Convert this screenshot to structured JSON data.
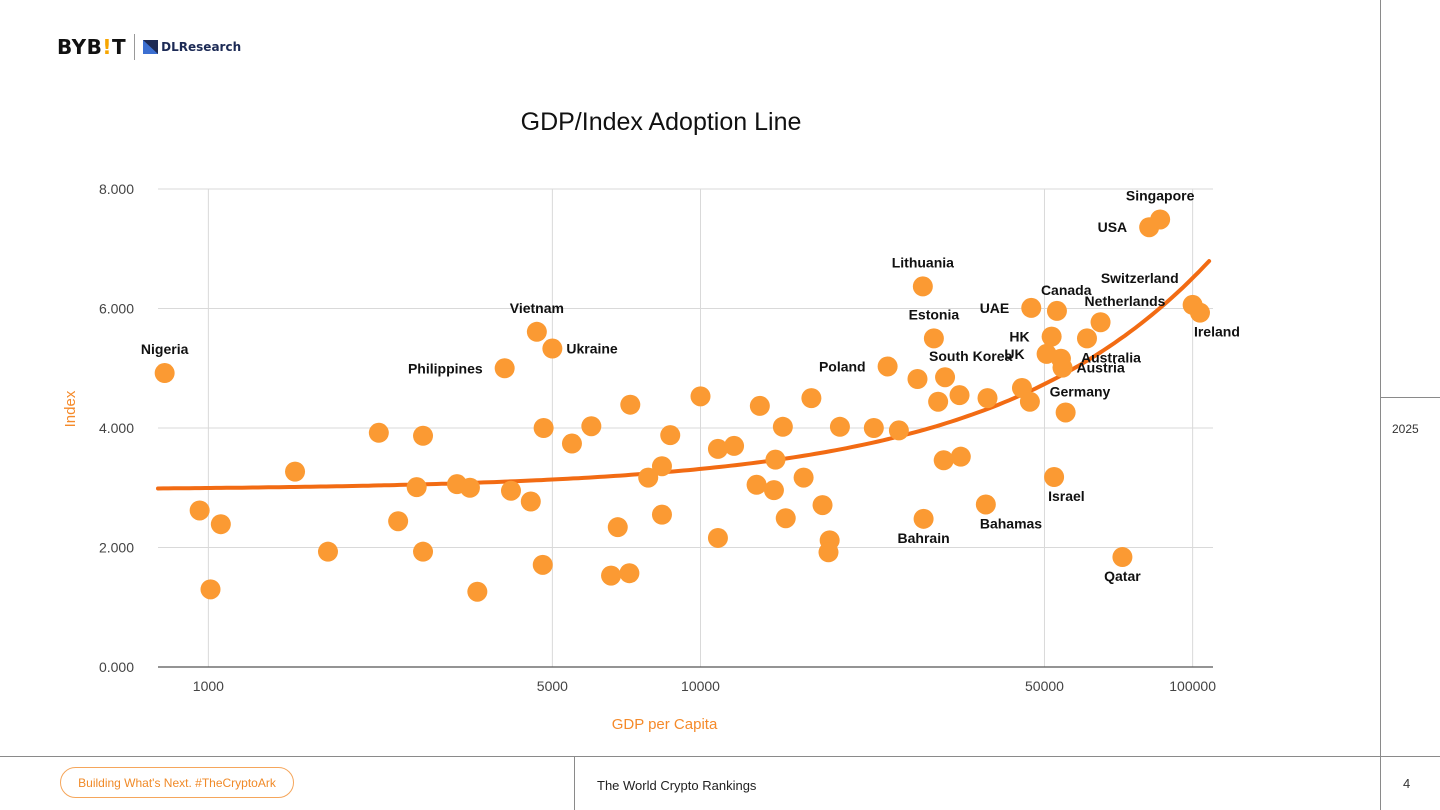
{
  "brand": {
    "logo_prefix": "BYB",
    "logo_accent": "!",
    "logo_suffix": "T",
    "partner": "DLResearch"
  },
  "year": "2025",
  "page_number": "4",
  "footer": {
    "tagline": "Building What's Next. #TheCryptoArk",
    "report_title": "The World Crypto Rankings"
  },
  "colors": {
    "point": "#fb9a33",
    "trend": "#f26b13",
    "grid": "#d9d9d9",
    "axis": "#555555"
  },
  "chart_data": {
    "type": "scatter",
    "title": "GDP/Index Adoption Line",
    "xlabel": "GDP per Capita",
    "ylabel": "Index",
    "x_scale": "log",
    "xlim": [
      790,
      110000
    ],
    "ylim": [
      0,
      8
    ],
    "grid": true,
    "x_ticks": [
      {
        "value": 1000,
        "label": "1000"
      },
      {
        "value": 5000,
        "label": "5000"
      },
      {
        "value": 10000,
        "label": "10000"
      },
      {
        "value": 50000,
        "label": "50000"
      },
      {
        "value": 100000,
        "label": "100000"
      }
    ],
    "y_ticks": [
      {
        "value": 0,
        "label": "0.000"
      },
      {
        "value": 2,
        "label": "2.000"
      },
      {
        "value": 4,
        "label": "4.000"
      },
      {
        "value": 6,
        "label": "6.000"
      },
      {
        "value": 8,
        "label": "8.000"
      }
    ],
    "trend_line": {
      "type": "linear-in-gdp",
      "intercept": 2.96,
      "slope_per_100k": 3.55
    },
    "points": [
      {
        "x": 815,
        "y": 4.92,
        "label": "Nigeria",
        "label_pos": "above"
      },
      {
        "x": 960,
        "y": 2.62
      },
      {
        "x": 1010,
        "y": 1.3
      },
      {
        "x": 1060,
        "y": 2.39
      },
      {
        "x": 1500,
        "y": 3.27
      },
      {
        "x": 1750,
        "y": 1.93
      },
      {
        "x": 2220,
        "y": 3.92
      },
      {
        "x": 2430,
        "y": 2.44
      },
      {
        "x": 2650,
        "y": 3.01
      },
      {
        "x": 2730,
        "y": 3.87
      },
      {
        "x": 2730,
        "y": 1.93
      },
      {
        "x": 3200,
        "y": 3.06
      },
      {
        "x": 3400,
        "y": 3.0
      },
      {
        "x": 3520,
        "y": 1.26
      },
      {
        "x": 4000,
        "y": 5.0,
        "label": "Philippines",
        "label_pos": "left"
      },
      {
        "x": 4120,
        "y": 2.95
      },
      {
        "x": 4520,
        "y": 2.77
      },
      {
        "x": 4650,
        "y": 5.61,
        "label": "Vietnam",
        "label_pos": "above"
      },
      {
        "x": 4800,
        "y": 4.0
      },
      {
        "x": 4780,
        "y": 1.71
      },
      {
        "x": 5000,
        "y": 5.33,
        "label": "Ukraine",
        "label_pos": "right"
      },
      {
        "x": 5480,
        "y": 3.74
      },
      {
        "x": 6000,
        "y": 4.03
      },
      {
        "x": 6580,
        "y": 1.53
      },
      {
        "x": 6790,
        "y": 2.34
      },
      {
        "x": 7170,
        "y": 1.57
      },
      {
        "x": 7200,
        "y": 4.39
      },
      {
        "x": 7830,
        "y": 3.17
      },
      {
        "x": 8350,
        "y": 3.36
      },
      {
        "x": 8350,
        "y": 2.55
      },
      {
        "x": 8680,
        "y": 3.88
      },
      {
        "x": 10000,
        "y": 4.53
      },
      {
        "x": 10850,
        "y": 3.65
      },
      {
        "x": 10850,
        "y": 2.16
      },
      {
        "x": 11700,
        "y": 3.7
      },
      {
        "x": 13000,
        "y": 3.05
      },
      {
        "x": 13200,
        "y": 4.37
      },
      {
        "x": 14100,
        "y": 2.96
      },
      {
        "x": 14200,
        "y": 3.47
      },
      {
        "x": 14700,
        "y": 4.02
      },
      {
        "x": 14900,
        "y": 2.49
      },
      {
        "x": 16200,
        "y": 3.17
      },
      {
        "x": 16800,
        "y": 4.5
      },
      {
        "x": 17700,
        "y": 2.71
      },
      {
        "x": 18300,
        "y": 2.12
      },
      {
        "x": 18200,
        "y": 1.92
      },
      {
        "x": 19200,
        "y": 4.02
      },
      {
        "x": 22500,
        "y": 4.0
      },
      {
        "x": 24000,
        "y": 5.03,
        "label": "Poland",
        "label_pos": "left"
      },
      {
        "x": 25300,
        "y": 3.96
      },
      {
        "x": 27600,
        "y": 4.82
      },
      {
        "x": 28400,
        "y": 2.48,
        "label": "Bahrain",
        "label_pos": "below"
      },
      {
        "x": 28300,
        "y": 6.37,
        "label": "Lithuania",
        "label_pos": "above"
      },
      {
        "x": 29800,
        "y": 5.5,
        "label": "Estonia",
        "label_pos": "above"
      },
      {
        "x": 30400,
        "y": 4.44
      },
      {
        "x": 31200,
        "y": 3.46
      },
      {
        "x": 31400,
        "y": 4.85,
        "label": "South Korea",
        "label_pos": "above-right"
      },
      {
        "x": 33600,
        "y": 4.55
      },
      {
        "x": 33800,
        "y": 3.52
      },
      {
        "x": 38000,
        "y": 2.72,
        "label": "Bahamas",
        "label_pos": "below-right"
      },
      {
        "x": 38300,
        "y": 4.5
      },
      {
        "x": 45000,
        "y": 4.67
      },
      {
        "x": 46700,
        "y": 4.44
      },
      {
        "x": 47000,
        "y": 6.01,
        "label": "UAE",
        "label_pos": "left"
      },
      {
        "x": 50500,
        "y": 5.24,
        "label": "UK",
        "label_pos": "left"
      },
      {
        "x": 51700,
        "y": 5.53,
        "label": "HK",
        "label_pos": "left"
      },
      {
        "x": 52300,
        "y": 3.18,
        "label": "Israel",
        "label_pos": "below-right"
      },
      {
        "x": 53000,
        "y": 5.96,
        "label": "Canada",
        "label_pos": "above-right"
      },
      {
        "x": 54000,
        "y": 5.16
      },
      {
        "x": 54400,
        "y": 5.01,
        "label": "Austria",
        "label_pos": "right"
      },
      {
        "x": 55200,
        "y": 4.26,
        "label": "Germany",
        "label_pos": "above-right"
      },
      {
        "x": 61000,
        "y": 5.5,
        "label": "Australia",
        "label_pos": "below-right"
      },
      {
        "x": 65000,
        "y": 5.77,
        "label": "Netherlands",
        "label_pos": "above-right"
      },
      {
        "x": 72000,
        "y": 1.84,
        "label": "Qatar",
        "label_pos": "below"
      },
      {
        "x": 81600,
        "y": 7.36,
        "label": "USA",
        "label_pos": "left"
      },
      {
        "x": 85900,
        "y": 7.49,
        "label": "Singapore",
        "label_pos": "above"
      },
      {
        "x": 100000,
        "y": 6.06,
        "label": "Switzerland",
        "label_pos": "above-left"
      },
      {
        "x": 103500,
        "y": 5.93,
        "label": "Ireland",
        "label_pos": "below-right"
      }
    ]
  }
}
